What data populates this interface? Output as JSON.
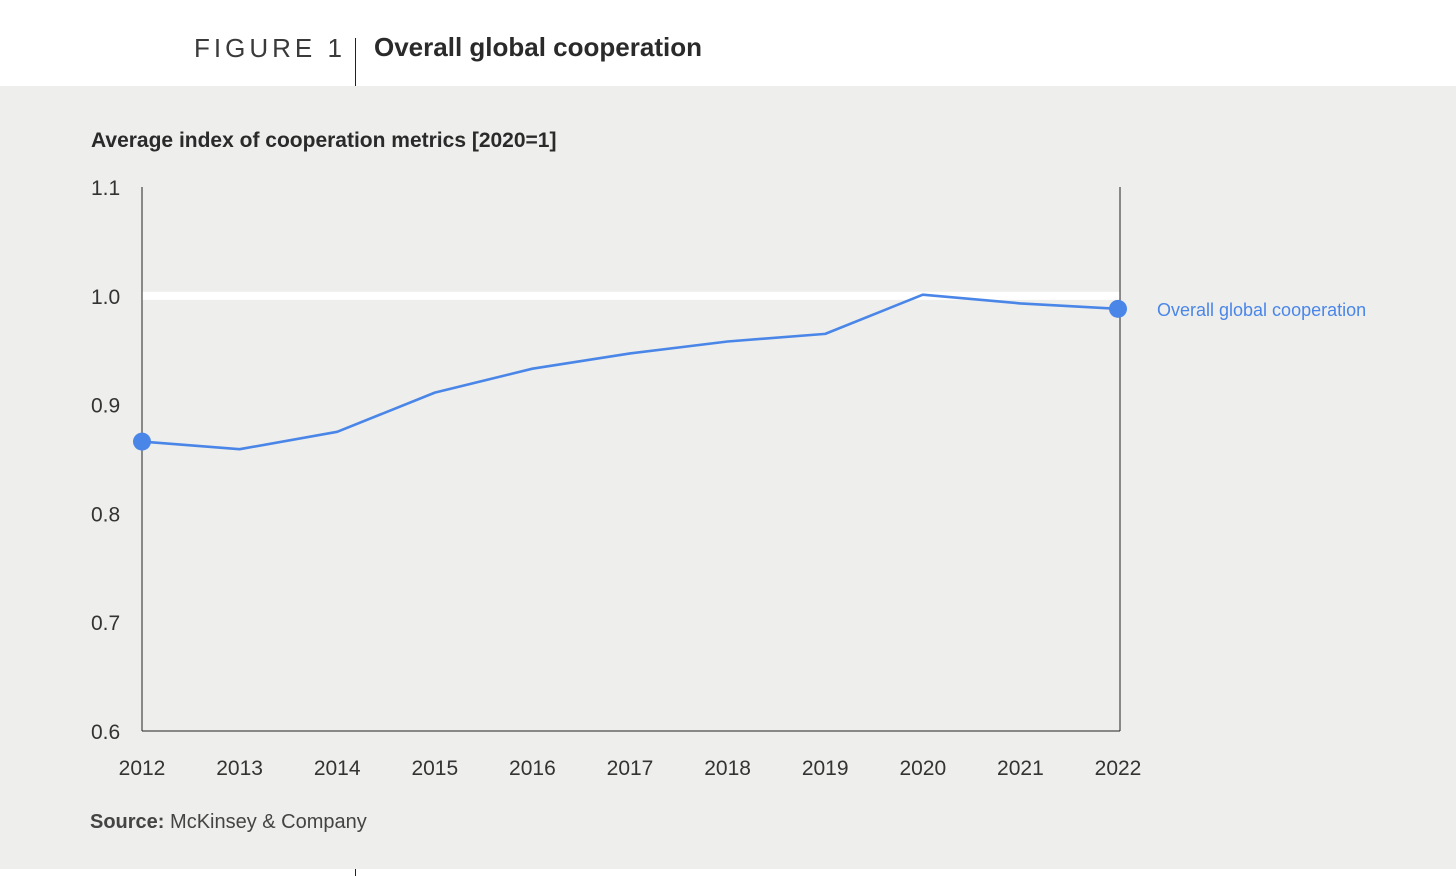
{
  "figure_label": "FIGURE 1",
  "source": {
    "prefix": "Source:",
    "text": "McKinsey & Company"
  },
  "colors": {
    "line": "#4a86e8",
    "panel_bg": "#eeeeec",
    "reference_band": "#ffffff",
    "axis": "#222222"
  },
  "chart_data": {
    "type": "line",
    "title": "Overall global cooperation",
    "subtitle": "Average index of cooperation metrics [2020=1]",
    "x": [
      "2012",
      "2013",
      "2014",
      "2015",
      "2016",
      "2017",
      "2018",
      "2019",
      "2020",
      "2021",
      "2022"
    ],
    "series": [
      {
        "name": "Overall global cooperation",
        "values": [
          0.866,
          0.859,
          0.875,
          0.911,
          0.933,
          0.947,
          0.958,
          0.965,
          1.001,
          0.993,
          0.988
        ]
      }
    ],
    "ylim": [
      0.6,
      1.1
    ],
    "yticks": [
      "1.1",
      "1.0",
      "0.9",
      "0.8",
      "0.7",
      "0.6"
    ],
    "ytick_values": [
      1.1,
      1.0,
      0.9,
      0.8,
      0.7,
      0.6
    ],
    "reference_line": 1.0,
    "grid": false,
    "markers": "first-and-last",
    "legend": "end-of-line label"
  }
}
